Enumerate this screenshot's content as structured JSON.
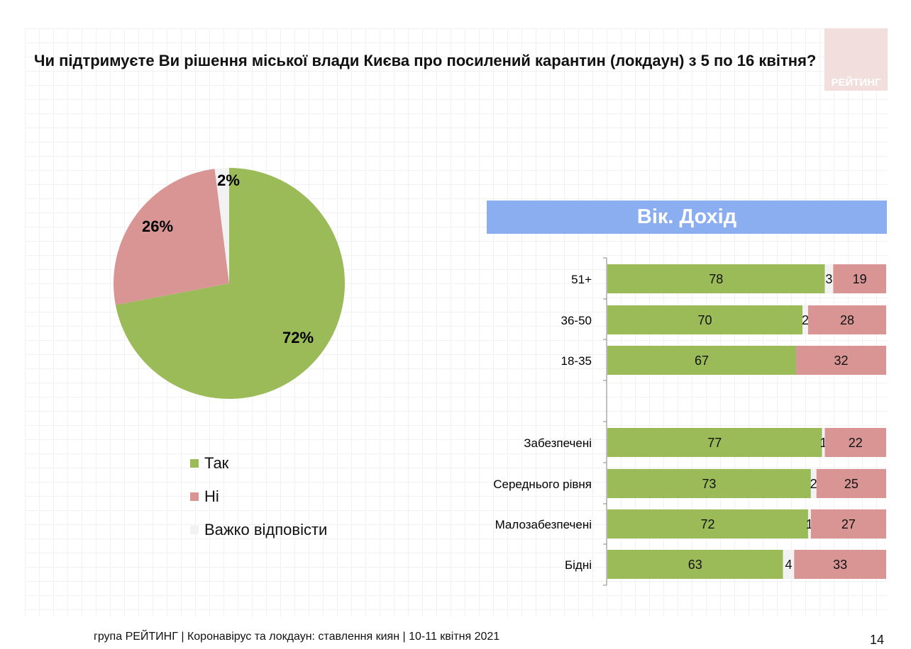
{
  "title": "Чи підтримуєте Ви рішення міської влади Києва про посилений карантин (локдаун) з 5 по 16 квітня?",
  "logo_text": "РЕЙТИНГ",
  "section_band": "Вік. Дохід",
  "footer": "група РЕЙТИНГ  | Коронавірус та локдаун: ставлення киян  | 10-11 квітня 2021",
  "page_number": "14",
  "colors": {
    "yes": "#9bbb59",
    "no": "#d99594",
    "dk": "#f2f2f2",
    "band": "#8aaef0"
  },
  "chart_data": [
    {
      "type": "pie",
      "series": [
        "Так",
        "Ні",
        "Важко відповісти"
      ],
      "values": [
        72,
        26,
        2
      ],
      "labels": [
        "72%",
        "26%",
        "2%"
      ],
      "legend_placement": "bottom"
    },
    {
      "type": "bar",
      "orientation": "horizontal",
      "stacked": true,
      "categories": [
        "51+",
        "36-50",
        "18-35",
        "Забезпечені",
        "Середнього рівня",
        "Малозабезпечені",
        "Бідні"
      ],
      "series": [
        {
          "name": "Так",
          "values": [
            78,
            70,
            67,
            77,
            73,
            72,
            63
          ]
        },
        {
          "name": "Важко відповісти",
          "values": [
            3,
            2,
            null,
            1,
            2,
            1,
            4
          ]
        },
        {
          "name": "Ні",
          "values": [
            19,
            28,
            32,
            22,
            25,
            27,
            33
          ]
        }
      ]
    }
  ]
}
